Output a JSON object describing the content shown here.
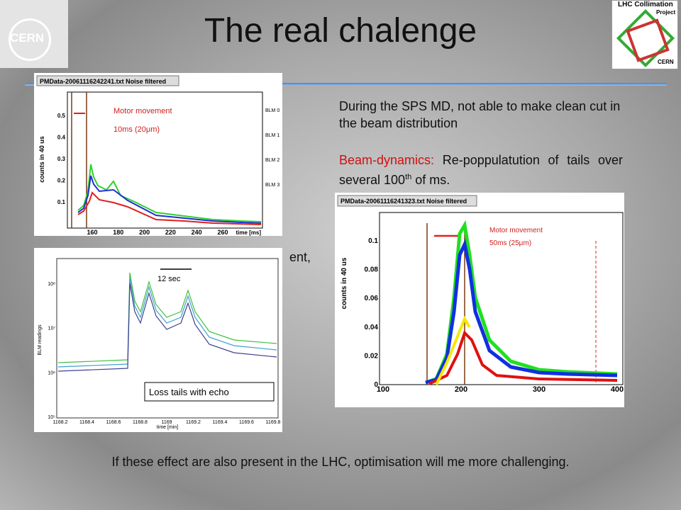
{
  "header": {
    "title": "The real chalenge",
    "left_logo": "CERN",
    "right_logo": [
      "LHC Collimation",
      "Project",
      "CERN"
    ]
  },
  "text": {
    "line1": "During the SPS MD, not able to make clean cut in the beam distribution",
    "line2_label": "Beam-dynamics:",
    "line2_text": "Re-poppulatution of tails over several 100",
    "line2_sup": "th",
    "line2_end": "of ms.",
    "hidden_fragment": "ent,"
  },
  "plot1": {
    "title": "PMData-20061116242241.txt Noise filtered",
    "ylabel": "counts in 40 us",
    "xlabel": "time [ms]",
    "yticks": [
      "0.1",
      "0.2",
      "0.3",
      "0.4",
      "0.5"
    ],
    "xticks": [
      "160",
      "180",
      "200",
      "220",
      "240",
      "260"
    ],
    "annotation": [
      "Motor movement",
      "10ms (20μm)"
    ],
    "legend": [
      "BLM 0",
      "BLM 1",
      "BLM 2",
      "BLM 3"
    ]
  },
  "plot2": {
    "ylabel": "BLM readings",
    "xlabel": "time [min]",
    "yticks": [
      "10⁸",
      "10⁷",
      "10⁶",
      "10⁵"
    ],
    "xticks": [
      "1168.2",
      "1168.4",
      "1168.6",
      "1168.8",
      "1169",
      "1169.2",
      "1169.4",
      "1169.6",
      "1169.8"
    ],
    "annotation": "12 sec",
    "caption": "Loss tails with echo"
  },
  "plot3": {
    "title": "PMData-20061116241323.txt Noise filtered",
    "ylabel": "counts in 40 us",
    "yticks": [
      "0.1",
      "0.08",
      "0.06",
      "0.04",
      "0.02",
      "0"
    ],
    "xticks": [
      "100",
      "200",
      "300",
      "400"
    ],
    "annotation": [
      "Motor movement",
      "50ms (25μm)"
    ]
  },
  "footer": "If these effect are also present in the LHC, optimisation will me more challenging."
}
